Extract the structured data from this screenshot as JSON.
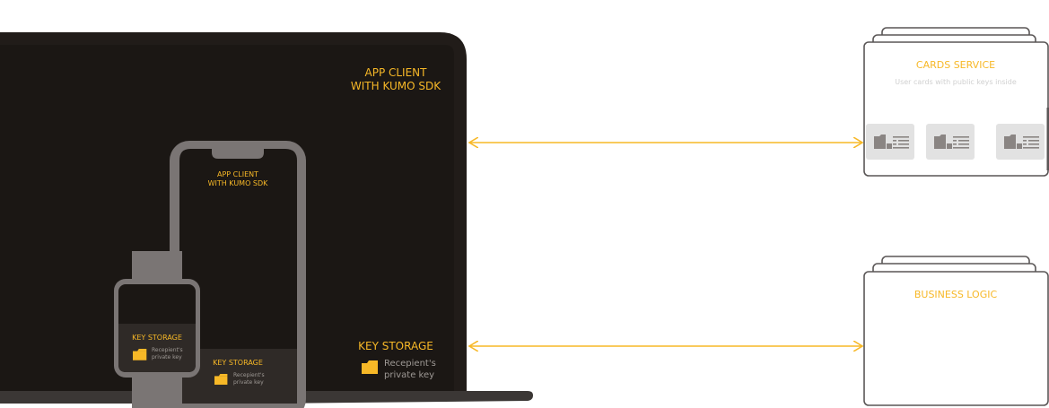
{
  "colors": {
    "accent": "#f7b827",
    "laptop_body": "#211c19",
    "laptop_screen": "#1b1714",
    "device_frame": "#7a7574",
    "storage_panel": "#2f2a27",
    "server_stroke": "#5a5656",
    "card_fill": "#e2e2e2",
    "card_icon": "#8a8583",
    "subtitle_text": "#d0d0d0"
  },
  "laptop": {
    "client_line1": "APP CLIENT",
    "client_line2": "WITH KUMO SDK",
    "storage_title": "KEY STORAGE",
    "key_line1": "Recepient's",
    "key_line2": "private key"
  },
  "phone": {
    "client_line1": "APP CLIENT",
    "client_line2": "WITH KUMO SDK",
    "storage_title": "KEY STORAGE",
    "key_line1": "Recepient's",
    "key_line2": "private key"
  },
  "watch": {
    "storage_title": "KEY STORAGE",
    "key_line1": "Recepient's",
    "key_line2": "private key"
  },
  "cards_service": {
    "title": "CARDS SERVICE",
    "subtitle": "User cards with public keys inside",
    "icon": "user-card-icon"
  },
  "business_logic": {
    "title": "BUSINESS LOGIC"
  },
  "icons": {
    "key": "folder-key-icon",
    "arrow": "double-arrow-icon"
  }
}
